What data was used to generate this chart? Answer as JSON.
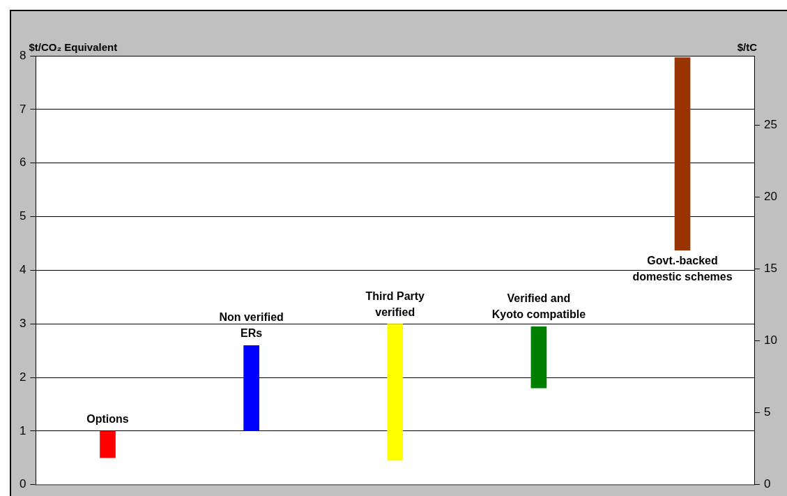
{
  "chart_data": {
    "type": "bar",
    "ylabel": "$t/CO₂ Equivalent",
    "y2label": "$/tC",
    "categories": [
      "Options",
      "Non verified\nERs",
      "Third Party\nverified",
      "Verified and\nKyoto compatible",
      "Govt.-backed\ndomestic schemes"
    ],
    "base": [
      0.5,
      1.0,
      0.45,
      1.8,
      4.37
    ],
    "values": [
      0.5,
      1.6,
      2.55,
      1.15,
      3.6
    ],
    "colors": [
      "#ff0000",
      "#0000ff",
      "#ffff00",
      "#008000",
      "#993300"
    ],
    "ylim": [
      0,
      8
    ],
    "yticks": [
      0,
      1,
      2,
      3,
      4,
      5,
      6,
      7,
      8
    ],
    "y2lim": [
      0,
      29.8
    ],
    "y2ticks": [
      0,
      5,
      10,
      15,
      20,
      25
    ],
    "grid": "y",
    "legend": false
  }
}
